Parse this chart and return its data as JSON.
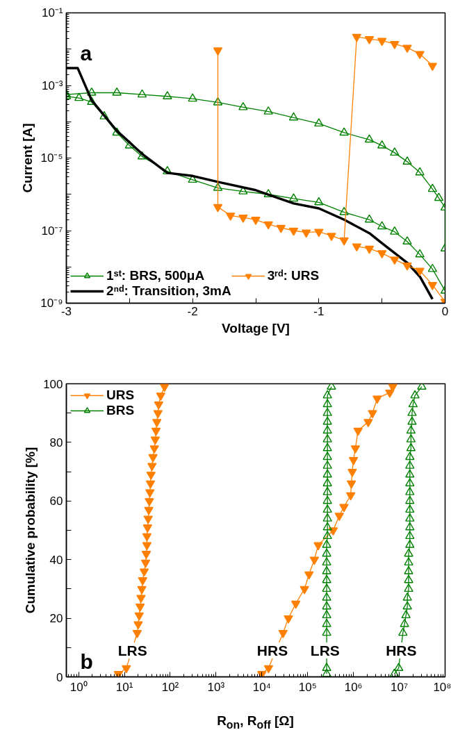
{
  "chart_data": [
    {
      "type": "line",
      "xlabel": "Voltage [V]",
      "ylabel": "Current [A]",
      "log": "y",
      "xlim": [
        -3,
        0
      ],
      "ylim": [
        1e-09,
        0.1
      ],
      "xticks": [
        -3,
        {
          "value": -2.5,
          "label": null
        },
        -2,
        {
          "value": -1.5,
          "label": null
        },
        -1,
        {
          "value": -0.5,
          "label": null
        },
        0
      ],
      "yticks": [
        {
          "value": 1e-09,
          "label": "10⁻⁹"
        },
        {
          "value": 1e-08,
          "label": null
        },
        {
          "value": 1e-07,
          "label": "10⁻⁷"
        },
        {
          "value": 1e-06,
          "label": null
        },
        {
          "value": 1e-05,
          "label": "10⁻⁵"
        },
        {
          "value": 0.0001,
          "label": null
        },
        {
          "value": 0.001,
          "label": "10⁻³"
        },
        {
          "value": 0.01,
          "label": null
        },
        {
          "value": 0.1,
          "label": "10⁻¹"
        }
      ],
      "grid": false,
      "legend": "bottom left",
      "annotations": [
        "a"
      ],
      "series": [
        {
          "name": "1ˢᵗ: BRS, 500μA",
          "color": "#008000",
          "marker": "triangle",
          "x": [
            0,
            -0.1,
            -0.2,
            -0.3,
            -0.4,
            -0.5,
            -0.6,
            -0.8,
            -1.0,
            -1.2,
            -1.4,
            -1.6,
            -1.8,
            -2.0,
            -2.2,
            -2.4,
            -2.5,
            -2.6,
            -2.7,
            -2.8,
            -2.9,
            -3.0,
            -3.0,
            -2.8,
            -2.6,
            -2.4,
            -2.2,
            -2.0,
            -1.8,
            -1.6,
            -1.4,
            -1.2,
            -1.0,
            -0.8,
            -0.6,
            -0.5,
            -0.4,
            -0.3,
            -0.2,
            -0.1,
            -0.05,
            0,
            0
          ],
          "values": [
            2.2e-09,
            8.7e-09,
            2.2e-08,
            5e-08,
            9.3e-08,
            1.3e-07,
            2e-07,
            3.2e-07,
            6e-07,
            7.6e-07,
            1e-06,
            1.2e-06,
            1.5e-06,
            2.5e-06,
            4.3e-06,
            1.1e-05,
            2.2e-05,
            5e-05,
            0.00014,
            0.00035,
            0.00045,
            0.0005,
            0.00056,
            0.00063,
            0.00063,
            0.00056,
            0.0005,
            0.00043,
            0.00034,
            0.00025,
            0.00019,
            0.00013,
            8.9e-05,
            5e-05,
            3.2e-05,
            2.2e-05,
            1.4e-05,
            7.9e-06,
            4e-06,
            1.4e-06,
            7.9e-07,
            4.3e-07,
            3.2e-08
          ]
        },
        {
          "name": "2ⁿᵈ: Transition, 3mA",
          "color": "#000000",
          "marker": "none",
          "x": [
            -3.0,
            -2.91,
            -2.8,
            -2.6,
            -2.4,
            -2.2,
            -2.0,
            -1.8,
            -1.5,
            -1.2,
            -1.0,
            -0.8,
            -0.6,
            -0.5,
            -0.3,
            -0.2,
            -0.1
          ],
          "values": [
            0.003,
            0.003,
            0.00039,
            5.6e-05,
            1.3e-05,
            3.9e-06,
            3.2e-06,
            2.2e-06,
            1.3e-06,
            5.6e-07,
            4.1e-07,
            2e-07,
            8.5e-08,
            4.5e-08,
            1.3e-08,
            5.4e-09,
            1.3e-09
          ]
        },
        {
          "name": "3ʳᵈ: URS",
          "color": "#ff8000",
          "marker": "triangle",
          "x": [
            -0.1,
            -0.2,
            -0.3,
            -0.4,
            -0.5,
            -0.6,
            -0.7,
            -0.8,
            -0.9,
            -1.0,
            -1.1,
            -1.2,
            -1.3,
            -1.4,
            -1.5,
            -1.6,
            -1.7,
            -1.8,
            -1.8,
            null,
            -0.7,
            -0.6,
            -0.5,
            -0.4,
            -0.3,
            -0.2,
            -0.1,
            0
          ],
          "values": [
            0.0035,
            0.0074,
            0.011,
            0.014,
            0.017,
            0.019,
            0.022,
            5.4e-08,
            7.2e-08,
            9.3e-08,
            8.9e-08,
            1e-07,
            1.2e-07,
            1.5e-07,
            2e-07,
            2.3e-07,
            2.6e-07,
            4.5e-07,
            0.0093,
            null,
            3.7e-08,
            3.2e-08,
            2.4e-08,
            1.6e-08,
            1.1e-08,
            7.9e-09,
            3.2e-09,
            1.1e-09
          ]
        }
      ]
    },
    {
      "type": "line",
      "xlabel": "R$_{on}$, R$_{off}$ [Ω]",
      "ylabel": "Cumulative probability [%]",
      "log": "x",
      "xlim": [
        0.54,
        100000000.0
      ],
      "ylim": [
        0,
        100
      ],
      "xticks": [
        {
          "value": 1,
          "label": "10⁰"
        },
        {
          "value": 10,
          "label": "10¹"
        },
        {
          "value": 100,
          "label": "10²"
        },
        {
          "value": 1000,
          "label": "10³"
        },
        {
          "value": 10000.0,
          "label": "10⁴"
        },
        {
          "value": 100000.0,
          "label": "10⁵"
        },
        {
          "value": 1000000.0,
          "label": "10⁶"
        },
        {
          "value": 10000000.0,
          "label": "10⁷"
        },
        {
          "value": 100000000.0,
          "label": "10⁸"
        }
      ],
      "yticks": [
        0,
        {
          "value": 10,
          "label": null
        },
        20,
        {
          "value": 30,
          "label": null
        },
        40,
        {
          "value": 50,
          "label": null
        },
        60,
        {
          "value": 70,
          "label": null
        },
        80,
        {
          "value": 90,
          "label": null
        },
        100
      ],
      "grid": false,
      "legend": "top left",
      "annotations": [
        "b",
        {
          "text": "LRS",
          "x": 15,
          "y": 9
        },
        {
          "text": "HRS",
          "x": 17000.0,
          "y": 9
        },
        {
          "text": "LRS",
          "x": 240000.0,
          "y": 9
        },
        {
          "text": "HRS",
          "x": 11000000.0,
          "y": 9
        }
      ],
      "series": [
        {
          "name": "URS",
          "color": "#ff8000",
          "marker": "triangle",
          "x": [
            7.4,
            11,
            19,
            20,
            21,
            22,
            23,
            24,
            25,
            27,
            29,
            30,
            31,
            31,
            32,
            33,
            34,
            35,
            36,
            37,
            38,
            40,
            42,
            45,
            47,
            49,
            51,
            54,
            56,
            62,
            75,
            null,
            10000.0,
            14000.0,
            29000.0,
            38000.0,
            55000.0,
            85000.0,
            107000.0,
            140000.0,
            170000.0,
            360000.0,
            490000.0,
            620000.0,
            870000.0,
            900000.0,
            940000.0,
            1000000.0,
            1100000.0,
            1260000.0,
            2100000.0,
            2600000.0,
            3300000.0,
            6200000.0,
            7200000.0
          ],
          "values": [
            1,
            3,
            15,
            18,
            21,
            24,
            27,
            30,
            33,
            36,
            39,
            42,
            45,
            48,
            51,
            54,
            57,
            60,
            63,
            66,
            69,
            72,
            75,
            78,
            81,
            84,
            87,
            90,
            93,
            96,
            99,
            null,
            1,
            3,
            15,
            20,
            25,
            30,
            35,
            40,
            45,
            50,
            55,
            58,
            62,
            66,
            70,
            74,
            78,
            84,
            87,
            90,
            95,
            97,
            99
          ]
        },
        {
          "name": "BRS",
          "color": "#008000",
          "marker": "triangle",
          "x": [
            260000.0,
            260000.0,
            260000.0,
            260000.0,
            260000.0,
            260000.0,
            260000.0,
            260000.0,
            260000.0,
            260000.0,
            260000.0,
            260000.0,
            260000.0,
            270000.0,
            270000.0,
            270000.0,
            270000.0,
            270000.0,
            270000.0,
            270000.0,
            270000.0,
            270000.0,
            270000.0,
            270000.0,
            270000.0,
            270000.0,
            270000.0,
            270000.0,
            270000.0,
            270000.0,
            330000.0,
            null,
            7800000.0,
            9700000.0,
            12000000.0,
            13000000.0,
            14000000.0,
            15000000.0,
            15000000.0,
            16000000.0,
            16000000.0,
            16000000.0,
            16000000.0,
            16000000.0,
            17000000.0,
            17000000.0,
            17000000.0,
            17000000.0,
            17000000.0,
            17000000.0,
            17000000.0,
            17000000.0,
            17000000.0,
            17000000.0,
            17000000.0,
            18000000.0,
            18000000.0,
            18000000.0,
            19000000.0,
            19000000.0,
            20000000.0,
            22000000.0,
            31000000.0
          ],
          "values": [
            1,
            3,
            15,
            18,
            21,
            24,
            27,
            30,
            33,
            36,
            39,
            42,
            45,
            48,
            51,
            54,
            57,
            60,
            63,
            66,
            69,
            72,
            75,
            78,
            81,
            84,
            87,
            90,
            93,
            96,
            99,
            null,
            1,
            3,
            15,
            18,
            21,
            24,
            27,
            30,
            33,
            36,
            39,
            42,
            45,
            48,
            51,
            54,
            57,
            60,
            63,
            66,
            69,
            72,
            75,
            78,
            81,
            84,
            87,
            90,
            93,
            96,
            99
          ]
        }
      ]
    }
  ]
}
